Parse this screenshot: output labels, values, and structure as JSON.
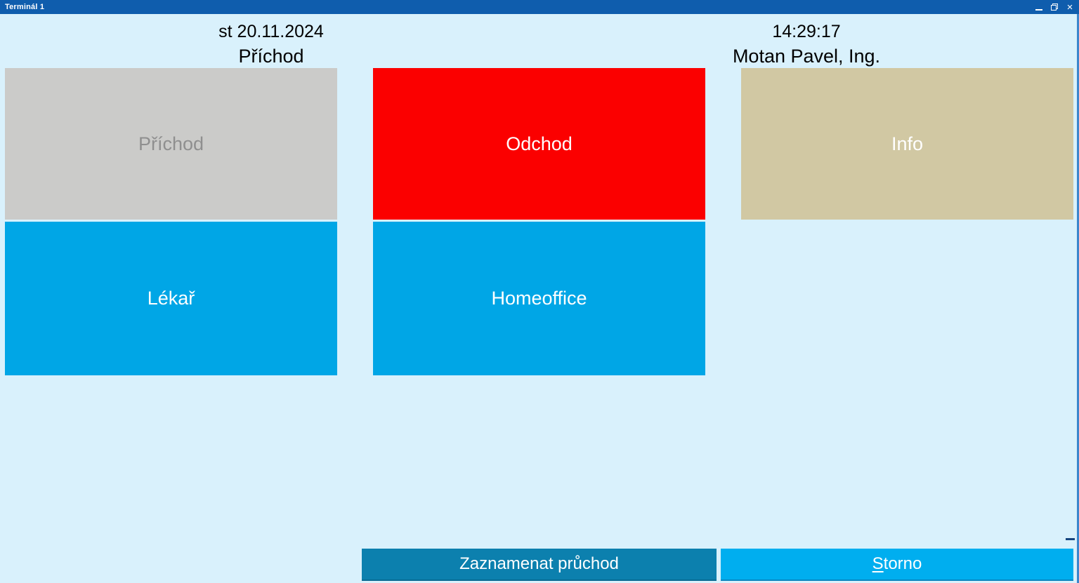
{
  "window": {
    "title": "Terminál 1",
    "controls": {
      "close_glyph": "×"
    }
  },
  "header": {
    "left": {
      "date": "st 20.11.2024",
      "mode": "Příchod"
    },
    "right": {
      "time": "14:29:17",
      "user": "Motan Pavel, Ing."
    }
  },
  "tiles": {
    "prichod": {
      "label": "Příchod",
      "bg": "#cbcbc9",
      "fg": "#8f8f8f",
      "disabled": true
    },
    "odchod": {
      "label": "Odchod",
      "bg": "#fb0000",
      "fg": "#ffffff",
      "disabled": false
    },
    "info": {
      "label": "Info",
      "bg": "#d1c8a3",
      "fg": "#ffffff",
      "disabled": false
    },
    "lekar": {
      "label": "Lékař",
      "bg": "#00a6e6",
      "fg": "#ffffff",
      "disabled": false
    },
    "homeoffice": {
      "label": "Homeoffice",
      "bg": "#00a6e6",
      "fg": "#ffffff",
      "disabled": false
    }
  },
  "footer": {
    "record": {
      "label": "Zaznamenat průchod",
      "bg": "#0c80ae"
    },
    "cancel": {
      "label_prefix": "S",
      "label_rest": "torno",
      "accesskey": "S",
      "bg": "#00aeef"
    }
  },
  "colors": {
    "titlebar": "#0f5dad",
    "background": "#d9f1fc",
    "right_edge": "#3c86cc",
    "tile_blue": "#00a6e6",
    "tile_red": "#fb0000",
    "tile_gray": "#cbcbc9",
    "tile_tan": "#d1c8a3",
    "footer_record": "#0c80ae",
    "footer_cancel": "#00aeef"
  }
}
